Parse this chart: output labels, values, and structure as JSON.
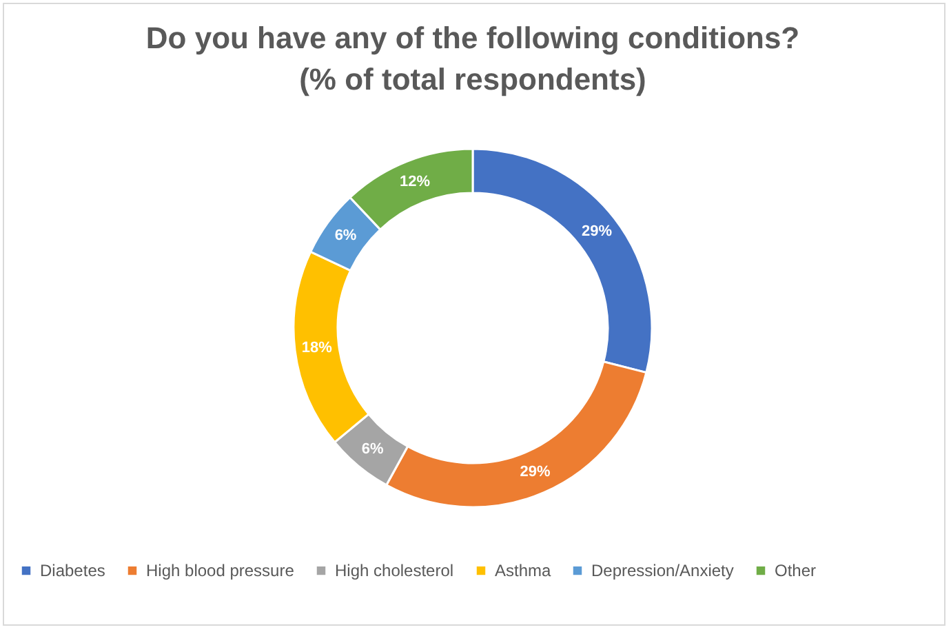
{
  "chart_data": {
    "type": "donut",
    "title": "Do you have any of the following conditions?\n(% of total respondents)",
    "categories": [
      "Diabetes",
      "High blood pressure",
      "High cholesterol",
      "Asthma",
      "Depression/Anxiety",
      "Other"
    ],
    "values": [
      29,
      29,
      6,
      18,
      6,
      12
    ],
    "value_labels": [
      "29%",
      "29%",
      "6%",
      "18%",
      "6%",
      "12%"
    ],
    "colors": [
      "#4472c4",
      "#ed7d31",
      "#a5a5a5",
      "#ffc000",
      "#5b9bd5",
      "#70ad47"
    ],
    "legend": "bottom"
  }
}
